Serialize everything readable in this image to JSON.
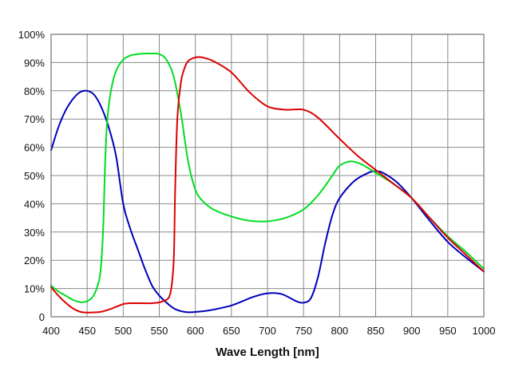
{
  "chart_data": {
    "type": "line",
    "title": "",
    "xlabel": "Wave Length [nm]",
    "ylabel": "",
    "xlim": [
      400,
      1000
    ],
    "ylim": [
      0,
      100
    ],
    "grid": true,
    "x_ticks": [
      400,
      450,
      500,
      550,
      600,
      650,
      700,
      750,
      800,
      850,
      900,
      950,
      1000
    ],
    "y_ticks": [
      0,
      10,
      20,
      30,
      40,
      50,
      60,
      70,
      80,
      90,
      100
    ],
    "y_tick_labels": [
      "0",
      "10%",
      "20%",
      "30%",
      "40%",
      "50%",
      "60%",
      "70%",
      "80%",
      "90%",
      "100%"
    ],
    "series": [
      {
        "color": "#0000bb",
        "points": [
          [
            400,
            59
          ],
          [
            410,
            67
          ],
          [
            420,
            73
          ],
          [
            430,
            77
          ],
          [
            440,
            79.5
          ],
          [
            450,
            80
          ],
          [
            460,
            78.5
          ],
          [
            470,
            74
          ],
          [
            480,
            67
          ],
          [
            490,
            57
          ],
          [
            500,
            40
          ],
          [
            510,
            31
          ],
          [
            520,
            24
          ],
          [
            530,
            17
          ],
          [
            540,
            11
          ],
          [
            550,
            7.5
          ],
          [
            560,
            5
          ],
          [
            570,
            3
          ],
          [
            580,
            2
          ],
          [
            590,
            1.6
          ],
          [
            600,
            1.7
          ],
          [
            620,
            2.3
          ],
          [
            650,
            4
          ],
          [
            680,
            7
          ],
          [
            700,
            8.3
          ],
          [
            720,
            8
          ],
          [
            740,
            5.5
          ],
          [
            750,
            5
          ],
          [
            760,
            6.5
          ],
          [
            770,
            14
          ],
          [
            780,
            26
          ],
          [
            790,
            36
          ],
          [
            800,
            42
          ],
          [
            820,
            48
          ],
          [
            840,
            51
          ],
          [
            850,
            51.5
          ],
          [
            860,
            51
          ],
          [
            880,
            47.5
          ],
          [
            900,
            42
          ],
          [
            925,
            34
          ],
          [
            950,
            26.5
          ],
          [
            975,
            21
          ],
          [
            1000,
            16
          ]
        ]
      },
      {
        "color": "#00dd22",
        "points": [
          [
            400,
            11
          ],
          [
            410,
            9
          ],
          [
            420,
            7.5
          ],
          [
            430,
            6
          ],
          [
            440,
            5.2
          ],
          [
            450,
            5.5
          ],
          [
            460,
            8
          ],
          [
            468,
            15
          ],
          [
            472,
            30
          ],
          [
            475,
            55
          ],
          [
            478,
            70
          ],
          [
            483,
            80
          ],
          [
            490,
            87
          ],
          [
            500,
            91
          ],
          [
            510,
            92.5
          ],
          [
            520,
            93
          ],
          [
            530,
            93.2
          ],
          [
            540,
            93.2
          ],
          [
            550,
            93
          ],
          [
            560,
            91
          ],
          [
            570,
            85
          ],
          [
            580,
            72
          ],
          [
            590,
            55
          ],
          [
            600,
            45
          ],
          [
            610,
            41
          ],
          [
            625,
            38
          ],
          [
            650,
            35.5
          ],
          [
            675,
            34
          ],
          [
            700,
            33.8
          ],
          [
            725,
            35
          ],
          [
            750,
            38
          ],
          [
            770,
            43
          ],
          [
            790,
            50
          ],
          [
            800,
            53.5
          ],
          [
            815,
            55
          ],
          [
            830,
            54
          ],
          [
            850,
            51
          ],
          [
            875,
            47
          ],
          [
            900,
            42
          ],
          [
            925,
            35
          ],
          [
            950,
            28.5
          ],
          [
            975,
            23
          ],
          [
            1000,
            17
          ]
        ]
      },
      {
        "color": "#dd0000",
        "points": [
          [
            400,
            10.5
          ],
          [
            410,
            7.5
          ],
          [
            420,
            5
          ],
          [
            430,
            3
          ],
          [
            440,
            1.8
          ],
          [
            450,
            1.5
          ],
          [
            470,
            1.8
          ],
          [
            490,
            3.5
          ],
          [
            500,
            4.5
          ],
          [
            510,
            4.8
          ],
          [
            540,
            4.8
          ],
          [
            555,
            5.5
          ],
          [
            565,
            8
          ],
          [
            570,
            20
          ],
          [
            572,
            45
          ],
          [
            575,
            70
          ],
          [
            580,
            83
          ],
          [
            585,
            88
          ],
          [
            590,
            90.5
          ],
          [
            600,
            91.8
          ],
          [
            610,
            91.8
          ],
          [
            625,
            90.5
          ],
          [
            650,
            86.5
          ],
          [
            675,
            79.5
          ],
          [
            700,
            74.5
          ],
          [
            725,
            73.3
          ],
          [
            750,
            73.3
          ],
          [
            770,
            70.5
          ],
          [
            800,
            63
          ],
          [
            825,
            57
          ],
          [
            850,
            52
          ],
          [
            870,
            48
          ],
          [
            900,
            42
          ],
          [
            925,
            35
          ],
          [
            950,
            28
          ],
          [
            975,
            22
          ],
          [
            1000,
            16
          ]
        ]
      }
    ]
  }
}
